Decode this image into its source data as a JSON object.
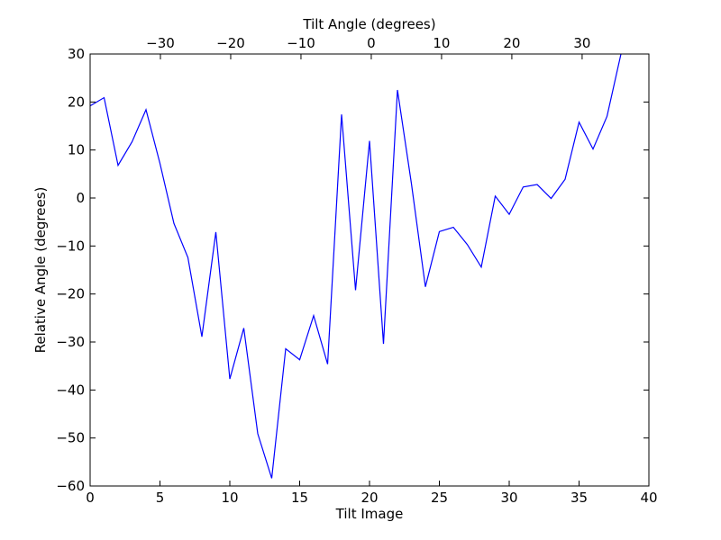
{
  "chart_data": {
    "type": "line",
    "title": "",
    "xlabel": "Tilt Image",
    "ylabel": "Relative Angle (degrees)",
    "top_xlabel": "Tilt Angle (degrees)",
    "xlim": [
      0,
      40
    ],
    "ylim": [
      -60,
      30
    ],
    "top_xlim": [
      -40.0,
      39.5
    ],
    "x_ticks": [
      0,
      5,
      10,
      15,
      20,
      25,
      30,
      35,
      40
    ],
    "y_ticks": [
      30,
      20,
      10,
      0,
      -10,
      -20,
      -30,
      -40,
      -50,
      -60
    ],
    "top_x_ticks": [
      -30,
      -20,
      -10,
      0,
      10,
      20,
      30
    ],
    "x_tick_labels": [
      "0",
      "5",
      "10",
      "15",
      "20",
      "25",
      "30",
      "35",
      "40"
    ],
    "y_tick_labels": [
      "30",
      "20",
      "10",
      "0",
      "−10",
      "−20",
      "−30",
      "−40",
      "−50",
      "−60"
    ],
    "top_x_tick_labels": [
      "−30",
      "−20",
      "−10",
      "0",
      "10",
      "20",
      "30"
    ],
    "grid": false,
    "line_color": "#0000ff",
    "series": [
      {
        "x": [
          0,
          1,
          2,
          3,
          4,
          5,
          6,
          7,
          8,
          9,
          10,
          11,
          12,
          13,
          14,
          15,
          16,
          17,
          18,
          19,
          20,
          21,
          22,
          23,
          24,
          25,
          26,
          27,
          28,
          29,
          30,
          31,
          32,
          33,
          34,
          35,
          36,
          37,
          38
        ],
        "values": [
          19.2,
          20.9,
          6.8,
          11.7,
          18.4,
          7.2,
          -5.3,
          -12.4,
          -28.9,
          -7.1,
          -37.7,
          -27.1,
          -49.1,
          -58.4,
          -31.4,
          -33.7,
          -24.5,
          -34.6,
          17.4,
          -19.2,
          11.9,
          -30.4,
          22.5,
          3.0,
          -18.5,
          -7.0,
          -6.1,
          -9.7,
          -14.4,
          0.4,
          -3.4,
          2.3,
          2.8,
          -0.1,
          3.9,
          15.8,
          10.2,
          17.0,
          30.0
        ]
      }
    ]
  }
}
